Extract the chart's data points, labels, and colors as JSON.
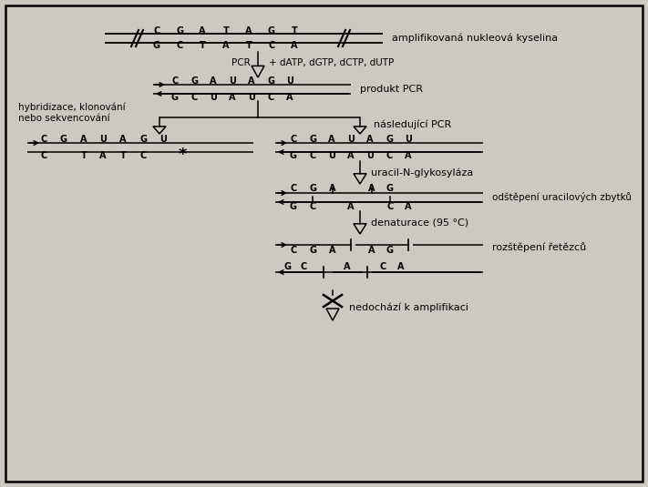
{
  "bg_color": "#ccc9c2",
  "border_color": "#000000",
  "text_color": "#000000",
  "annotations": {
    "amplifikova_nukleova": "amplifikovaná nukleová kyselina",
    "pcr_label": "PCR",
    "plus_datp": "+ dATP, dGTP, dCTP, dUTP",
    "produkt_pcr": "produkt PCR",
    "hybridizace": "hybridizace, klonování\nnebo sekvencování",
    "nasledujici_pcr": "následující PCR",
    "uracil_n": "uracil-N-glykosyláza",
    "odstepeni": "odštěpení uracilových zbytků",
    "denaturace": "denaturace (95 °C)",
    "rozstepeni": "rozštěpení řetězců",
    "nedochazi": "nedochází k amplifikaci"
  }
}
